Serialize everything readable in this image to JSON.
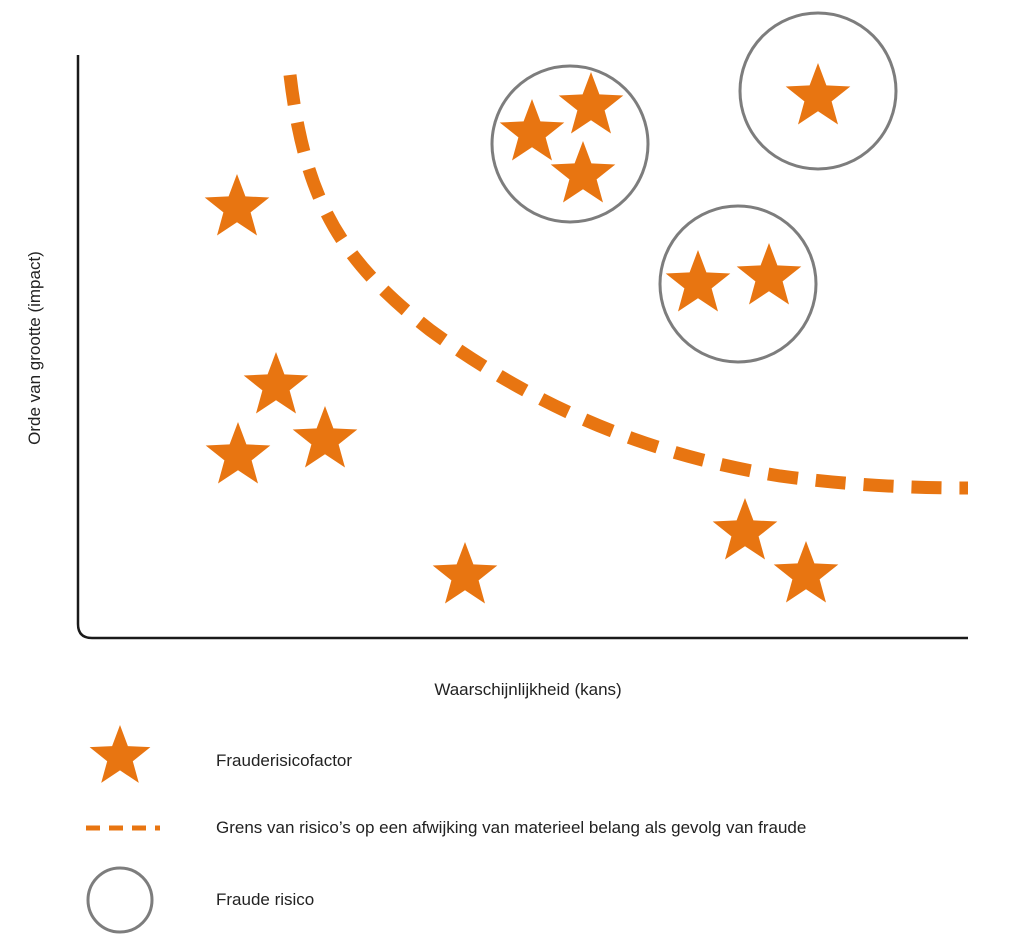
{
  "colors": {
    "accent": "#e87511",
    "circle": "#7d7d7d",
    "axis": "#1a1a1a"
  },
  "axes": {
    "x_label": "Waarschijnlijkheid (kans)",
    "y_label": "Orde van grootte (impact)"
  },
  "legend": {
    "items": [
      {
        "icon": "star-icon",
        "label": "Frauderisicofactor"
      },
      {
        "icon": "dashed-line-icon",
        "label": "Grens van risico’s op een afwijking van materieel belang als gevolg van fraude"
      },
      {
        "icon": "circle-icon",
        "label": "Fraude risico"
      }
    ]
  }
}
